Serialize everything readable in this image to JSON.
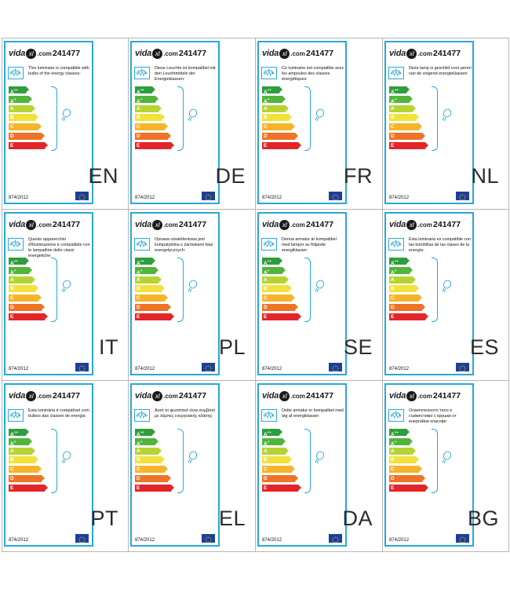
{
  "brand": {
    "prefix": "vida",
    "ball": "xl",
    "suffix": ".com"
  },
  "sku": "241477",
  "regulation": "874/2012",
  "energy_classes": [
    {
      "label": "A",
      "sup": "++",
      "color": "#2e9e3c"
    },
    {
      "label": "A",
      "sup": "+",
      "color": "#53b43c"
    },
    {
      "label": "A",
      "sup": "",
      "color": "#b6d334"
    },
    {
      "label": "B",
      "sup": "",
      "color": "#f1e23a"
    },
    {
      "label": "C",
      "sup": "",
      "color": "#f5b52a"
    },
    {
      "label": "D",
      "sup": "",
      "color": "#ef7326"
    },
    {
      "label": "E",
      "sup": "",
      "color": "#e3252a"
    }
  ],
  "colors": {
    "frame": "#2aa7d8",
    "grid_line": "#b5b5b5"
  },
  "icons": {
    "lamp": "chandelier-icon",
    "bulb": "light-bulb-icon",
    "flag": "eu-flag-icon"
  },
  "labels": [
    {
      "lang": "EN",
      "text": "This luminaire is compatible with bulbs of the energy classes:"
    },
    {
      "lang": "DE",
      "text": "Diese Leuchte ist kompatibel mit den Leuchtmitteln der Energieklassen:"
    },
    {
      "lang": "FR",
      "text": "Ce luminaire est compatible avec les ampoules des classes énergétiques:"
    },
    {
      "lang": "NL",
      "text": "Deze lamp is geschikt voor peren van de volgend energieklassen:"
    },
    {
      "lang": "IT",
      "text": "Questo apparecchio d'illuminazione è compatibile con le lampadine delle classi energetiche:"
    },
    {
      "lang": "PL",
      "text": "Oprawa oświetleniowa jest kompatybilna z żarówkami klas energetycznych:"
    },
    {
      "lang": "SE",
      "text": "Denna armatur är kompatibel med lampor av följande energiklasser:"
    },
    {
      "lang": "ES",
      "text": "Esta luminaria es compatible con las bombillas de las clases de la energía:"
    },
    {
      "lang": "PT",
      "text": "Esta luminária é compatível com bulbos das classes de energia:"
    },
    {
      "lang": "EL",
      "text": "Αυτό το φωτιστικό είναι συμβατό με λάμπες ενεργειακής κλάσης:"
    },
    {
      "lang": "DA",
      "text": "Dette armatur er kompatibel med løg af energiklasser:"
    },
    {
      "lang": "BG",
      "text": "Осветителното тяло е съвместимо с крушки от енергийни класове:"
    }
  ]
}
